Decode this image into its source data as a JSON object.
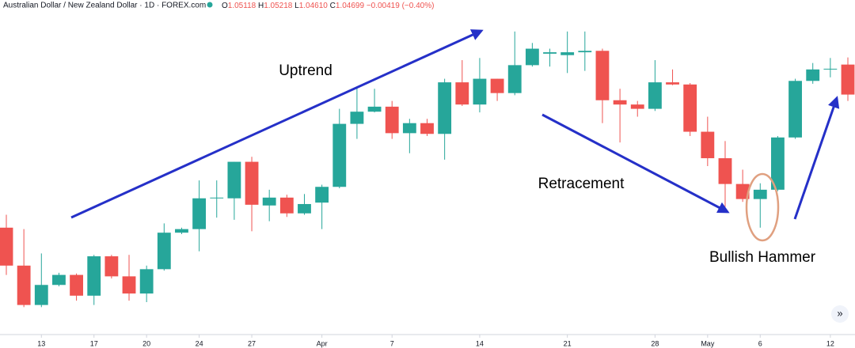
{
  "chart_data": {
    "type": "candlestick",
    "title": "Australian Dollar / New Zealand Dollar · 1D · FOREX.com",
    "legend": {
      "o": "O",
      "open": "1.05118",
      "h": "H",
      "high": "1.05218",
      "l": "L",
      "low": "1.04610",
      "c": "C",
      "close": "1.04699",
      "change": "−0.00419 (−0.40%)"
    },
    "categories": [
      null,
      null,
      "13",
      null,
      null,
      "17",
      null,
      null,
      "20",
      null,
      null,
      "24",
      null,
      null,
      "27",
      null,
      null,
      null,
      "Apr",
      null,
      null,
      null,
      "7",
      null,
      null,
      null,
      null,
      "14",
      null,
      null,
      null,
      null,
      "21",
      null,
      null,
      null,
      null,
      "28",
      null,
      null,
      "May",
      null,
      null,
      "6",
      null,
      null,
      null,
      "12",
      null
    ],
    "open": [
      1.0284,
      1.0231,
      1.0176,
      1.0204,
      1.0218,
      1.0189,
      1.0244,
      1.0216,
      1.0192,
      1.0226,
      1.0277,
      1.0282,
      1.0325,
      1.0325,
      1.0376,
      1.0315,
      1.0326,
      1.0304,
      1.0319,
      1.0341,
      1.0429,
      1.0446,
      1.0453,
      1.0416,
      1.043,
      1.0415,
      1.0487,
      1.0456,
      1.0492,
      1.0472,
      1.0511,
      1.0527,
      1.0525,
      1.0529,
      1.0531,
      1.0462,
      1.0456,
      1.045,
      1.0487,
      1.0484,
      1.0418,
      1.0381,
      1.0345,
      1.0324,
      1.0337,
      1.041,
      1.0489,
      1.0505,
      1.05118
    ],
    "high": [
      1.0302,
      1.0282,
      1.0248,
      1.0221,
      1.022,
      1.0246,
      1.0246,
      1.0246,
      1.0231,
      1.029,
      1.0284,
      1.035,
      1.035,
      1.0376,
      1.0383,
      1.0337,
      1.033,
      1.0331,
      1.0344,
      1.045,
      1.0481,
      1.0478,
      1.0461,
      1.0436,
      1.0436,
      1.0492,
      1.0518,
      1.0521,
      1.0492,
      1.0558,
      1.0542,
      1.0534,
      1.0558,
      1.0558,
      1.0534,
      1.0478,
      1.0461,
      1.0518,
      1.0505,
      1.0486,
      1.0439,
      1.0405,
      1.0365,
      1.0346,
      1.0412,
      1.0492,
      1.0514,
      1.0521,
      1.05218
    ],
    "low": [
      1.0218,
      1.0173,
      1.0173,
      1.0202,
      1.0182,
      1.0176,
      1.0213,
      1.0182,
      1.018,
      1.0224,
      1.0275,
      1.0251,
      1.0298,
      1.0295,
      1.0279,
      1.0293,
      1.0299,
      1.0302,
      1.0282,
      1.0339,
      1.0408,
      1.0445,
      1.0408,
      1.0388,
      1.0412,
      1.0379,
      1.0454,
      1.0445,
      1.0461,
      1.0469,
      1.0509,
      1.0509,
      1.05,
      1.0503,
      1.043,
      1.0403,
      1.0439,
      1.0447,
      1.0483,
      1.0412,
      1.037,
      1.0313,
      1.032,
      1.0284,
      1.0335,
      1.0408,
      1.0485,
      1.0494,
      1.0461
    ],
    "close": [
      1.0231,
      1.0176,
      1.0204,
      1.0218,
      1.0189,
      1.0244,
      1.0216,
      1.0192,
      1.0226,
      1.0277,
      1.0282,
      1.0325,
      1.0326,
      1.0376,
      1.0316,
      1.0326,
      1.0304,
      1.0317,
      1.0341,
      1.0429,
      1.0446,
      1.0453,
      1.0416,
      1.043,
      1.0415,
      1.0487,
      1.0456,
      1.0492,
      1.0472,
      1.0511,
      1.0534,
      1.0529,
      1.0529,
      1.0531,
      1.0462,
      1.0456,
      1.045,
      1.0487,
      1.0484,
      1.0418,
      1.0381,
      1.0345,
      1.0324,
      1.0337,
      1.041,
      1.0489,
      1.0505,
      1.0506,
      1.04699
    ],
    "up_color": "#26a69a",
    "down_color": "#ef5350",
    "ylim": [
      1.0138,
      1.0602
    ],
    "annotations": [
      "Uptrend",
      "Retracement",
      "Bullish Hammer"
    ],
    "scroll_button": "»"
  }
}
